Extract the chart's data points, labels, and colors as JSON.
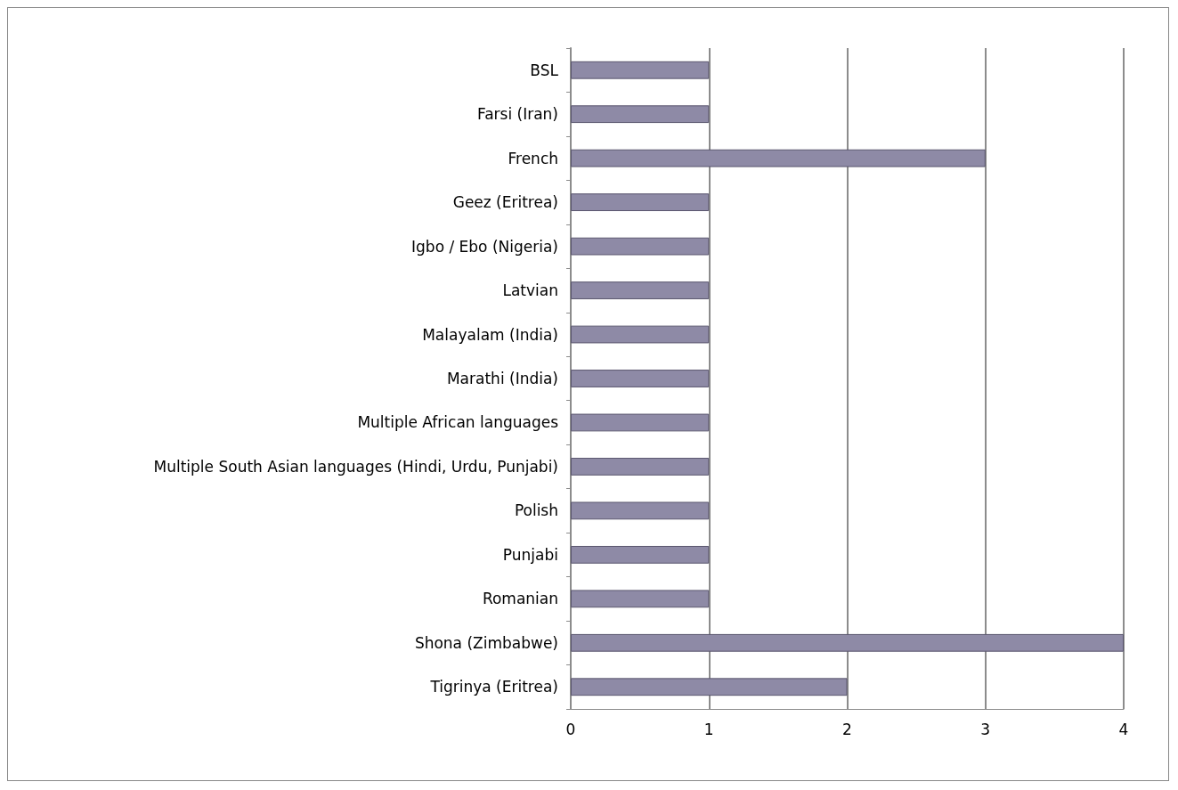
{
  "chart_data": {
    "type": "bar",
    "orientation": "horizontal",
    "categories": [
      "BSL",
      "Farsi (Iran)",
      "French",
      "Geez (Eritrea)",
      "Igbo / Ebo (Nigeria)",
      "Latvian",
      "Malayalam (India)",
      "Marathi (India)",
      "Multiple African languages",
      "Multiple South Asian languages (Hindi, Urdu, Punjabi)",
      "Polish",
      "Punjabi",
      "Romanian",
      "Shona (Zimbabwe)",
      "Tigrinya (Eritrea)"
    ],
    "values": [
      1,
      1,
      3,
      1,
      1,
      1,
      1,
      1,
      1,
      1,
      1,
      1,
      1,
      4,
      2
    ],
    "color": "#8e8aa6",
    "xlim": [
      0,
      4
    ],
    "xticks": [
      0,
      1,
      2,
      3,
      4
    ],
    "grid": "x"
  }
}
